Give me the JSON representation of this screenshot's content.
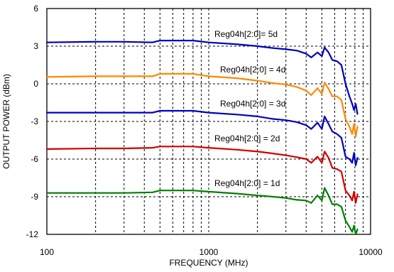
{
  "chart_data": {
    "type": "line",
    "title": "",
    "xlabel": "FREQUENCY (MHz)",
    "ylabel": "OUTPUT POWER (dBm)",
    "xscale": "log",
    "xlim": [
      100,
      10000
    ],
    "ylim": [
      -12,
      6
    ],
    "xticks": [
      100,
      1000,
      10000
    ],
    "xtick_labels": [
      "100",
      "1000",
      "10000"
    ],
    "yticks": [
      -12,
      -9,
      -6,
      -3,
      0,
      3,
      6
    ],
    "ytick_labels": [
      "-12",
      "-9",
      "-6",
      "-3",
      "0",
      "3",
      "6"
    ],
    "grid": true,
    "legend": "none",
    "series": [
      {
        "name": "Reg04h[2:0]= 5d",
        "color": "#0000c0",
        "x": [
          100,
          200,
          300,
          450,
          500,
          600,
          800,
          1000,
          1500,
          2000,
          2500,
          3000,
          3500,
          4000,
          4300,
          4700,
          5000,
          5200,
          5500,
          5800,
          6200,
          6600,
          7000,
          7400,
          7700,
          7900,
          8100,
          8300
        ],
        "y": [
          3.3,
          3.35,
          3.35,
          3.3,
          3.45,
          3.45,
          3.45,
          3.3,
          3.15,
          3.0,
          2.85,
          2.75,
          2.65,
          2.4,
          2.1,
          2.5,
          2.2,
          2.9,
          2.5,
          1.9,
          1.8,
          1.5,
          0.0,
          -1.0,
          -1.6,
          -2.1,
          -1.6,
          -2.4
        ]
      },
      {
        "name": "Reg04h[2:0] = 4d",
        "color": "#ff8800",
        "x": [
          100,
          200,
          300,
          450,
          500,
          600,
          800,
          1000,
          1500,
          2000,
          2500,
          3000,
          3500,
          4000,
          4300,
          4700,
          5000,
          5200,
          5500,
          5800,
          6200,
          6600,
          7000,
          7400,
          7700,
          7900,
          8100,
          8300
        ],
        "y": [
          0.55,
          0.6,
          0.6,
          0.6,
          0.8,
          0.8,
          0.8,
          0.6,
          0.45,
          0.25,
          0.05,
          -0.05,
          -0.25,
          -0.55,
          -0.9,
          -0.35,
          -0.8,
          0.1,
          -0.4,
          -1.0,
          -1.0,
          -1.3,
          -2.8,
          -3.4,
          -4.0,
          -3.2,
          -4.2,
          -3.4
        ]
      },
      {
        "name": "Reg04h[2:0] = 3d",
        "color": "#0000c0",
        "x": [
          100,
          200,
          300,
          450,
          500,
          600,
          800,
          1000,
          1500,
          2000,
          2500,
          3000,
          3500,
          4000,
          4300,
          4700,
          5000,
          5200,
          5500,
          5800,
          6200,
          6600,
          7000,
          7400,
          7700,
          7900,
          8100,
          8300
        ],
        "y": [
          -2.3,
          -2.3,
          -2.3,
          -2.3,
          -2.15,
          -2.15,
          -2.15,
          -2.3,
          -2.45,
          -2.6,
          -2.8,
          -2.9,
          -3.05,
          -3.3,
          -3.6,
          -3.1,
          -3.6,
          -2.6,
          -3.2,
          -3.8,
          -4.0,
          -4.3,
          -5.8,
          -6.0,
          -6.3,
          -5.5,
          -6.5,
          -5.9
        ]
      },
      {
        "name": "Reg04h[2:0] = 2d",
        "color": "#d00000",
        "x": [
          100,
          200,
          300,
          450,
          500,
          600,
          800,
          1000,
          1500,
          2000,
          2500,
          3000,
          3500,
          4000,
          4300,
          4700,
          5000,
          5200,
          5500,
          5800,
          6200,
          6600,
          7000,
          7400,
          7700,
          7900,
          8100,
          8300
        ],
        "y": [
          -5.2,
          -5.15,
          -5.15,
          -5.1,
          -5.0,
          -5.0,
          -5.0,
          -5.1,
          -5.25,
          -5.4,
          -5.55,
          -5.7,
          -5.85,
          -6.0,
          -6.3,
          -5.8,
          -6.3,
          -5.4,
          -5.9,
          -6.7,
          -6.8,
          -7.0,
          -8.5,
          -8.9,
          -9.3,
          -8.6,
          -9.5,
          -8.8
        ]
      },
      {
        "name": "Reg04h[2:0] = 1d",
        "color": "#008000",
        "x": [
          100,
          200,
          300,
          450,
          500,
          600,
          800,
          1000,
          1500,
          2000,
          2500,
          3000,
          3500,
          4000,
          4300,
          4700,
          5000,
          5200,
          5500,
          5800,
          6200,
          6600,
          7000,
          7400,
          7700,
          7900,
          8100,
          8300
        ],
        "y": [
          -8.7,
          -8.7,
          -8.7,
          -8.65,
          -8.5,
          -8.5,
          -8.5,
          -8.6,
          -8.75,
          -8.9,
          -9.0,
          -9.1,
          -9.25,
          -9.3,
          -9.5,
          -8.9,
          -9.3,
          -8.3,
          -8.9,
          -9.6,
          -9.6,
          -9.8,
          -10.9,
          -11.4,
          -11.8,
          -11.3,
          -12.0,
          -11.6
        ]
      }
    ]
  }
}
